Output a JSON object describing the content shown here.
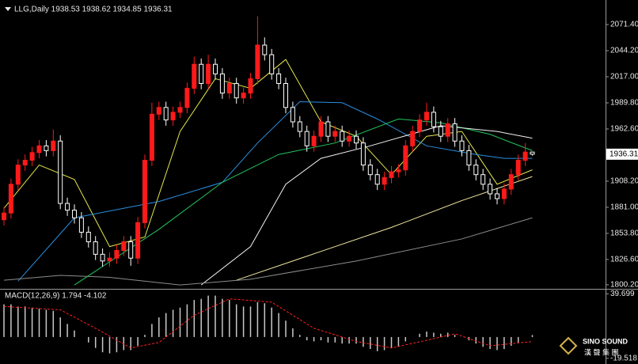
{
  "chart_data": [
    {
      "type": "candlestick",
      "title": "LLG,Daily 1938.53 1938.62 1934.85 1936.31",
      "open": [
        1868,
        1875,
        1905,
        1925,
        1930,
        1938,
        1945,
        1940,
        1950,
        1885,
        1878,
        1870,
        1855,
        1845,
        1832,
        1825,
        1828,
        1836,
        1845,
        1828,
        1865,
        1930,
        1978,
        1985,
        1972,
        1980,
        1985,
        2005,
        2030,
        2010,
        2030,
        2020,
        2000,
        2010,
        1995,
        2000,
        2015,
        2050,
        2040,
        2020,
        2010,
        1985,
        1970,
        1960,
        1945,
        1955,
        1970,
        1955,
        1960,
        1950,
        1955,
        1948,
        1925,
        1915,
        1905,
        1912,
        1918,
        1920,
        1945,
        1960,
        1972,
        1980,
        1965,
        1955,
        1968,
        1950,
        1940,
        1925,
        1915,
        1905,
        1895,
        1890,
        1900,
        1915,
        1930,
        1938.53
      ],
      "high": [
        1881,
        1911,
        1931,
        1936,
        1944,
        1951,
        1951,
        1962,
        1956,
        1891,
        1884,
        1876,
        1861,
        1851,
        1838,
        1834,
        1842,
        1851,
        1851,
        1871,
        1936,
        1990,
        1991,
        1991,
        1986,
        1991,
        2011,
        2038,
        2036,
        2040,
        2036,
        2026,
        2016,
        2016,
        2006,
        2021,
        2080,
        2058,
        2046,
        2026,
        2016,
        1991,
        1976,
        1966,
        1961,
        1976,
        1976,
        1966,
        1966,
        1961,
        1961,
        1954,
        1931,
        1921,
        1918,
        1924,
        1926,
        1951,
        1966,
        1978,
        1990,
        1986,
        1971,
        1974,
        1974,
        1956,
        1946,
        1931,
        1921,
        1911,
        1901,
        1906,
        1921,
        1936,
        1948,
        1938.62
      ],
      "low": [
        1862,
        1869,
        1899,
        1919,
        1924,
        1932,
        1934,
        1934,
        1879,
        1872,
        1864,
        1849,
        1839,
        1826,
        1819,
        1819,
        1822,
        1830,
        1820,
        1822,
        1859,
        1924,
        1972,
        1966,
        1966,
        1974,
        1979,
        1999,
        2004,
        2004,
        2014,
        1994,
        1994,
        1989,
        1989,
        1994,
        2009,
        2034,
        2014,
        2004,
        1979,
        1964,
        1954,
        1939,
        1939,
        1949,
        1949,
        1949,
        1944,
        1944,
        1942,
        1919,
        1909,
        1899,
        1899,
        1906,
        1912,
        1914,
        1939,
        1954,
        1966,
        1959,
        1949,
        1949,
        1944,
        1934,
        1919,
        1909,
        1899,
        1889,
        1884,
        1884,
        1894,
        1909,
        1924,
        1934.85
      ],
      "close": [
        1875,
        1905,
        1925,
        1930,
        1938,
        1945,
        1940,
        1950,
        1885,
        1878,
        1870,
        1855,
        1845,
        1832,
        1825,
        1828,
        1836,
        1845,
        1828,
        1865,
        1930,
        1978,
        1985,
        1972,
        1980,
        1985,
        2005,
        2030,
        2010,
        2030,
        2020,
        2000,
        2010,
        1995,
        2000,
        2015,
        2050,
        2040,
        2020,
        2010,
        1985,
        1970,
        1960,
        1945,
        1955,
        1970,
        1955,
        1960,
        1950,
        1955,
        1948,
        1925,
        1915,
        1905,
        1912,
        1918,
        1920,
        1945,
        1960,
        1972,
        1980,
        1965,
        1955,
        1968,
        1950,
        1940,
        1925,
        1915,
        1905,
        1895,
        1890,
        1900,
        1915,
        1930,
        1938.53,
        1936.31
      ],
      "up_color": "#ff1a1a",
      "down_color": "#ffffff",
      "ylim": [
        1796,
        2097
      ],
      "yticks": [
        {
          "value": 2071.4,
          "label": "2071.40"
        },
        {
          "value": 2044.2,
          "label": "2044.20"
        },
        {
          "value": 2017,
          "label": "2017.00"
        },
        {
          "value": 1989.8,
          "label": "1989.80"
        },
        {
          "value": 1962.6,
          "label": "1962.60"
        },
        {
          "value": 1908.2,
          "label": "1908.20"
        },
        {
          "value": 1881,
          "label": "1881.00"
        },
        {
          "value": 1853.8,
          "label": "1853.80"
        },
        {
          "value": 1826.6,
          "label": "1826.60"
        },
        {
          "value": 1800.2,
          "label": "1800.20"
        }
      ],
      "current_price": 1936.31,
      "lines": [
        {
          "color": "#e6e64c",
          "x": [
            0,
            5,
            10,
            15,
            20,
            25,
            30,
            35,
            40,
            45,
            50,
            55,
            60,
            65,
            70,
            75
          ],
          "values": [
            1880,
            1925,
            1910,
            1840,
            1850,
            1960,
            2015,
            2005,
            2035,
            1970,
            1955,
            1915,
            1955,
            1960,
            1905,
            1920
          ]
        },
        {
          "color": "#2a8fe0",
          "x": [
            2,
            10,
            22,
            31,
            36,
            42,
            48,
            53,
            60,
            67,
            71,
            75
          ],
          "values": [
            1804,
            1870,
            1887,
            1907,
            1948,
            1991,
            1990,
            1973,
            1945,
            1936,
            1932,
            1932
          ]
        },
        {
          "color": "#22c55e",
          "x": [
            10,
            22,
            31,
            39,
            47,
            56,
            62,
            69,
            75
          ],
          "values": [
            1800,
            1858,
            1907,
            1936,
            1948,
            1973,
            1969,
            1957,
            1940
          ]
        },
        {
          "color": "#f2f2f2",
          "x": [
            28,
            35,
            40,
            45,
            52,
            62,
            70,
            75
          ],
          "values": [
            1800,
            1840,
            1905,
            1932,
            1945,
            1966,
            1960,
            1953
          ]
        },
        {
          "color": "#f0e6a0",
          "x": [
            33,
            45,
            55,
            65,
            75
          ],
          "values": [
            1805,
            1835,
            1860,
            1888,
            1913
          ]
        },
        {
          "color": "#8c8c8c",
          "x": [
            0,
            8,
            15,
            25,
            35,
            50,
            65,
            75
          ],
          "values": [
            1805,
            1810,
            1808,
            1800,
            1806,
            1825,
            1848,
            1870
          ]
        }
      ]
    },
    {
      "type": "macd",
      "title": "MACD(12,26,9) 1.794 -4.102",
      "histogram": [
        30,
        30,
        28,
        28,
        27,
        26,
        25,
        24,
        18,
        12,
        6,
        0,
        -5,
        -10,
        -14,
        -15,
        -14,
        -12,
        -12,
        -8,
        2,
        12,
        18,
        22,
        25,
        27,
        30,
        34,
        35,
        38,
        38,
        35,
        34,
        30,
        28,
        28,
        32,
        31,
        27,
        22,
        15,
        8,
        2,
        -3,
        -4,
        -3,
        -5,
        -5,
        -6,
        -6,
        -6,
        -9,
        -11,
        -13,
        -12,
        -10,
        -9,
        -4,
        0,
        3,
        5,
        4,
        3,
        4,
        2,
        0,
        -3,
        -6,
        -9,
        -11,
        -12,
        -11,
        -8,
        -5,
        0,
        1.794
      ],
      "histogram_color": "#c8c8c8",
      "signal": {
        "color": "#ff2020",
        "x": [
          0,
          8,
          13,
          18,
          22,
          27,
          32,
          38,
          44,
          50,
          55,
          60,
          64,
          69,
          75
        ],
        "values": [
          28,
          25,
          8,
          -10,
          -5,
          20,
          35,
          32,
          8,
          -4,
          -10,
          -3,
          3,
          -8,
          -4.102
        ]
      },
      "ylim": [
        -23.3,
        43.5
      ],
      "yticks": [
        39.699,
        -19.518
      ]
    }
  ],
  "watermark": {
    "brand": "SINO SOUND",
    "chinese": "漢 聲 集 團"
  }
}
